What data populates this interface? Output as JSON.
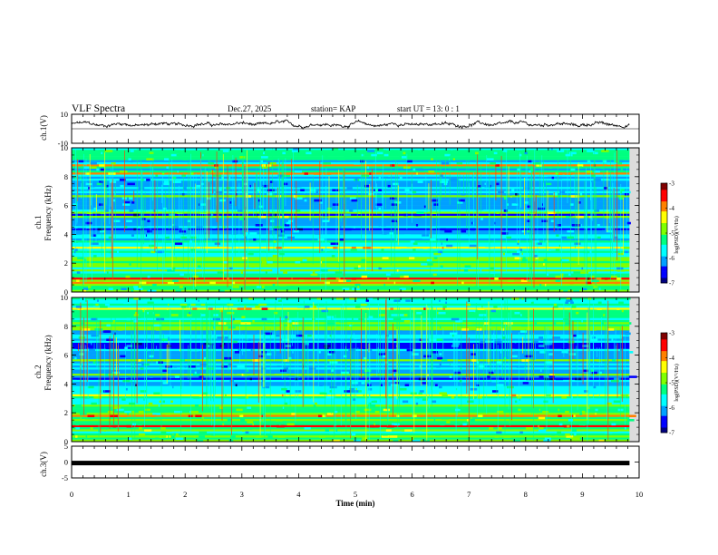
{
  "header": {
    "title": "VLF Spectra",
    "date": "Dec.27, 2025",
    "station": "station= KAP",
    "start_ut": "start  UT =   13: 0  : 1"
  },
  "colors": {
    "background": "#ffffff",
    "axis": "#000000",
    "colormap": [
      "#000080",
      "#0000ff",
      "#00a0ff",
      "#00ffff",
      "#00ff80",
      "#80ff00",
      "#ffff00",
      "#ff8000",
      "#ff0000",
      "#800000"
    ]
  },
  "chart_data": [
    {
      "id": "ch1-waveform",
      "type": "line",
      "ylabel": "ch.1(V)",
      "ylim": [
        -10,
        10
      ],
      "yticks": [
        "10",
        "-10"
      ],
      "xlim": [
        0,
        10
      ],
      "description_series": "voltage trace near +3 V with small fluctuations"
    },
    {
      "id": "ch1-spectrogram",
      "type": "heatmap",
      "ylabel_top": "ch.1",
      "ylabel": "Frequency  (kHz)",
      "ylim": [
        0,
        10
      ],
      "yticks": [
        "0",
        "2",
        "4",
        "6",
        "8",
        "10"
      ],
      "xlim": [
        0,
        10
      ],
      "colorbar": {
        "label": "log(PSD)(V²/Hz)",
        "range": [
          -7,
          -3
        ],
        "ticks": [
          "-3",
          "-4",
          "-5",
          "-6",
          "-7"
        ]
      }
    },
    {
      "id": "ch2-spectrogram",
      "type": "heatmap",
      "ylabel_top": "ch.2",
      "ylabel": "Frequency  (kHz)",
      "ylim": [
        0,
        10
      ],
      "yticks": [
        "0",
        "2",
        "4",
        "6",
        "8",
        "10"
      ],
      "xlim": [
        0,
        10
      ],
      "colorbar": {
        "label": "log(PSD)(V²/Hz)",
        "range": [
          -7,
          -3
        ],
        "ticks": [
          "-3",
          "-4",
          "-5",
          "-6",
          "-7"
        ]
      }
    },
    {
      "id": "ch3-waveform",
      "type": "line",
      "ylabel": "ch.3(V)",
      "ylim": [
        -5,
        5
      ],
      "yticks": [
        "5",
        "0",
        "-5"
      ],
      "xlim": [
        0,
        10
      ],
      "level_v": -0.3,
      "xlabel": "Time  (min)",
      "xticks": [
        "0",
        "1",
        "2",
        "3",
        "4",
        "5",
        "6",
        "7",
        "8",
        "9",
        "10"
      ]
    }
  ]
}
